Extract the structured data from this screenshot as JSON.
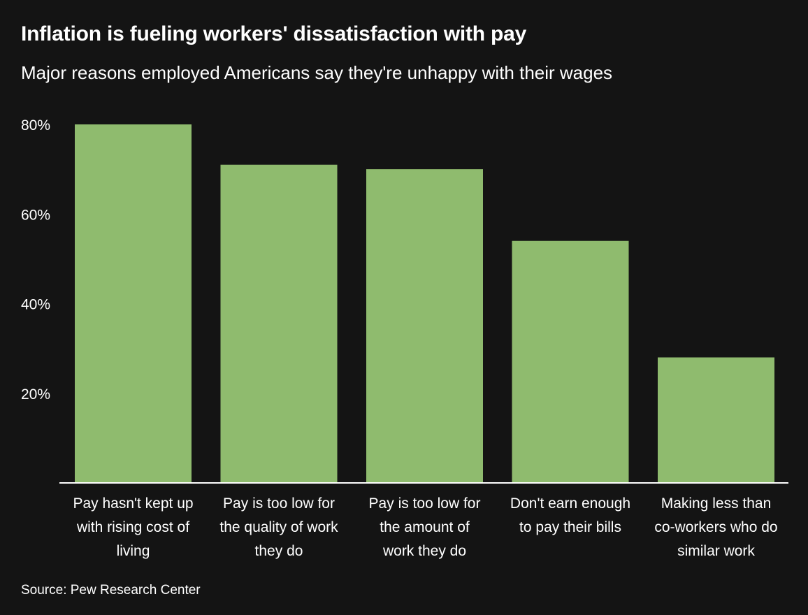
{
  "chart_data": {
    "type": "bar",
    "title": "Inflation is fueling workers' dissatisfaction with pay",
    "subtitle": "Major reasons employed Americans say they're unhappy with their wages",
    "categories": [
      [
        "Pay hasn't kept up",
        "with rising cost of",
        "living"
      ],
      [
        "Pay is too low for",
        "the quality of work",
        "they do"
      ],
      [
        "Pay is too low for",
        "the amount of",
        "work they do"
      ],
      [
        "Don't earn enough",
        "to pay their bills"
      ],
      [
        "Making less than",
        "co-workers who do",
        "similar work"
      ]
    ],
    "values": [
      80,
      71,
      70,
      54,
      28
    ],
    "unit": "%",
    "ylim": [
      0,
      80
    ],
    "yticks": [
      20,
      40,
      60,
      80
    ],
    "ytick_labels": [
      "20%",
      "40%",
      "60%",
      "80%"
    ],
    "xlabel": "",
    "ylabel": "",
    "grid": false,
    "bar_color": "#8fbb6e",
    "axis_color": "#ffffff",
    "background": "#141414",
    "source": "Source: Pew Research Center"
  }
}
